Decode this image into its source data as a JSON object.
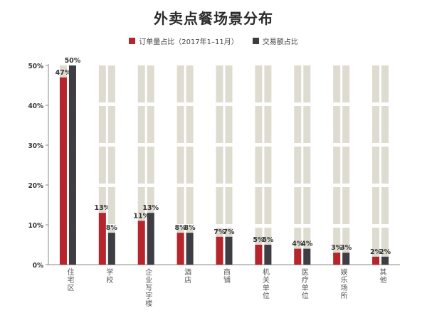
{
  "chart_data": {
    "type": "bar",
    "title": "外卖点餐场景分布",
    "categories": [
      "住宅区",
      "学校",
      "企业写字楼",
      "酒店",
      "商铺",
      "机关单位",
      "医疗单位",
      "娱乐场所",
      "其他"
    ],
    "series": [
      {
        "name": "订单量占比（2017年1–11月）",
        "values": [
          47,
          13,
          11,
          8,
          7,
          5,
          4,
          3,
          2
        ],
        "labels": [
          "47%",
          "13%",
          "11%",
          "8%",
          "7%",
          "5%",
          "4%",
          "3%",
          "2%"
        ],
        "color": "#b5252b"
      },
      {
        "name": "交易额占比",
        "values": [
          50,
          8,
          13,
          8,
          7,
          5,
          4,
          3,
          2
        ],
        "labels": [
          "50%",
          "8%",
          "13%",
          "8%",
          "7%",
          "5%",
          "4%",
          "3%",
          "2%"
        ],
        "color": "#3d3d43"
      }
    ],
    "track_color": "#dedbd0",
    "ylim": [
      0,
      50
    ],
    "yticks": [
      "0%",
      "10%",
      "20%",
      "30%",
      "40%",
      "50%"
    ],
    "grid": false,
    "legend_position": "top-center"
  }
}
